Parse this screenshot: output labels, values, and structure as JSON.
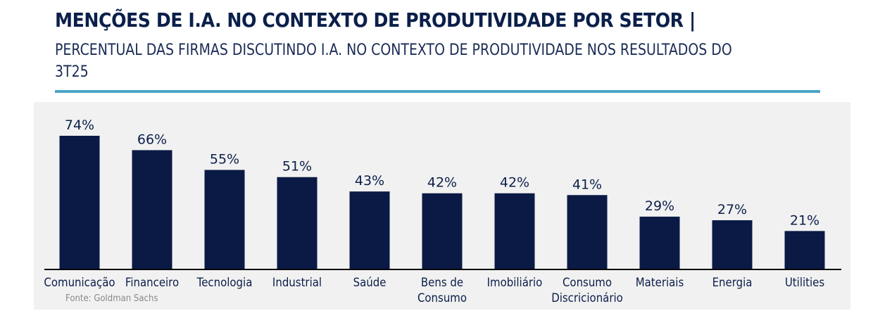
{
  "header": {
    "title": "MENÇÕES DE I.A. NO CONTEXTO DE PRODUTIVIDADE POR SETOR |",
    "subtitle": "PERCENTUAL DAS FIRMAS DISCUTINDO I.A. NO CONTEXTO DE PRODUTIVIDADE NOS RESULTADOS DO 3T25"
  },
  "colors": {
    "bar": "#0a1a45",
    "accent_rule": "#4ba3c7",
    "title": "#0b1f4a",
    "panel_bg": "#f1f1f1"
  },
  "source": "Fonte: Goldman Sachs",
  "chart_data": {
    "type": "bar",
    "title": "MENÇÕES DE I.A. NO CONTEXTO DE PRODUTIVIDADE POR SETOR",
    "subtitle": "PERCENTUAL DAS FIRMAS DISCUTINDO I.A. NO CONTEXTO DE PRODUTIVIDADE NOS RESULTADOS DO 3T25",
    "categories": [
      [
        "Comunicação"
      ],
      [
        "Financeiro"
      ],
      [
        "Tecnologia"
      ],
      [
        "Industrial"
      ],
      [
        "Saúde"
      ],
      [
        "Bens de",
        "Consumo"
      ],
      [
        "Imobiliário"
      ],
      [
        "Consumo",
        "Discricionário"
      ],
      [
        "Materiais"
      ],
      [
        "Energia"
      ],
      [
        "Utilities"
      ]
    ],
    "values": [
      74,
      66,
      55,
      51,
      43,
      42,
      42,
      41,
      29,
      27,
      21
    ],
    "data_labels": [
      "74%",
      "66%",
      "55%",
      "51%",
      "43%",
      "42%",
      "42%",
      "41%",
      "29%",
      "27%",
      "21%"
    ],
    "unit": "%",
    "xlabel": "",
    "ylabel": "",
    "ylim": [
      0,
      74
    ],
    "grid": false,
    "legend": "none"
  }
}
